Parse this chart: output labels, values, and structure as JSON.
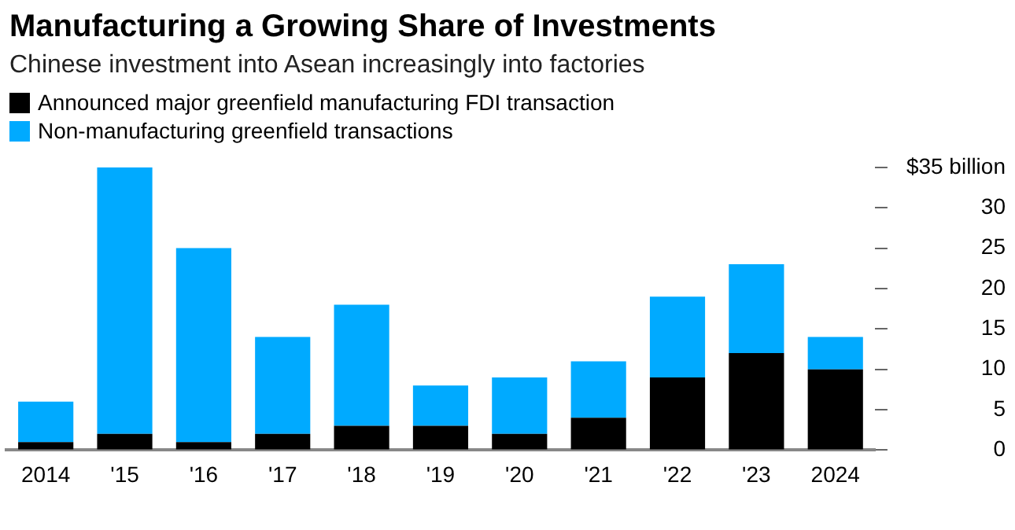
{
  "chart_data": {
    "type": "bar",
    "title": "Manufacturing a Growing Share of Investments",
    "subtitle": "Chinese investment into Asean increasingly into factories",
    "categories": [
      "2014",
      "'15",
      "'16",
      "'17",
      "'18",
      "'19",
      "'20",
      "'21",
      "'22",
      "'23",
      "2024"
    ],
    "series": [
      {
        "name": "Announced major greenfield manufacturing FDI transaction",
        "color": "#000000",
        "values": [
          1,
          2,
          1,
          2,
          3,
          3,
          2,
          4,
          9,
          12,
          10
        ]
      },
      {
        "name": "Non-manufacturing greenfield transactions",
        "color": "#00aaff",
        "values": [
          5,
          33,
          24,
          12,
          15,
          5,
          7,
          7,
          10,
          11,
          4
        ]
      }
    ],
    "stacked": true,
    "ylim": [
      0,
      35
    ],
    "yticks": [
      0,
      5,
      10,
      15,
      20,
      25,
      30,
      {
        "value": 35,
        "label": "$35 billion"
      }
    ],
    "grid": false,
    "legend": "top left"
  }
}
